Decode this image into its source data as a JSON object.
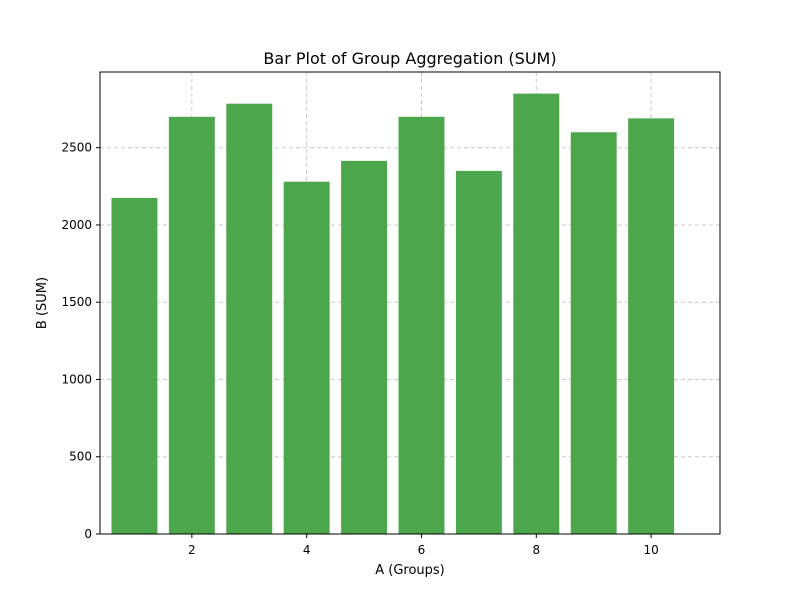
{
  "chart_data": {
    "type": "bar",
    "title": "Bar Plot of Group Aggregation (SUM)",
    "xlabel": "A (Groups)",
    "ylabel": "B (SUM)",
    "categories": [
      1,
      2,
      3,
      4,
      5,
      6,
      7,
      8,
      9,
      10
    ],
    "values": [
      2175,
      2700,
      2785,
      2280,
      2415,
      2700,
      2350,
      2850,
      2600,
      2690
    ],
    "xlim": [
      0.4,
      11.2
    ],
    "ylim": [
      0,
      2990
    ],
    "xticks": [
      2,
      4,
      6,
      8,
      10
    ],
    "yticks": [
      0,
      500,
      1000,
      1500,
      2000,
      2500
    ],
    "bar_width": 0.8,
    "bar_color": "#4ca64c",
    "grid": true,
    "grid_color": "#c8c8c8"
  }
}
